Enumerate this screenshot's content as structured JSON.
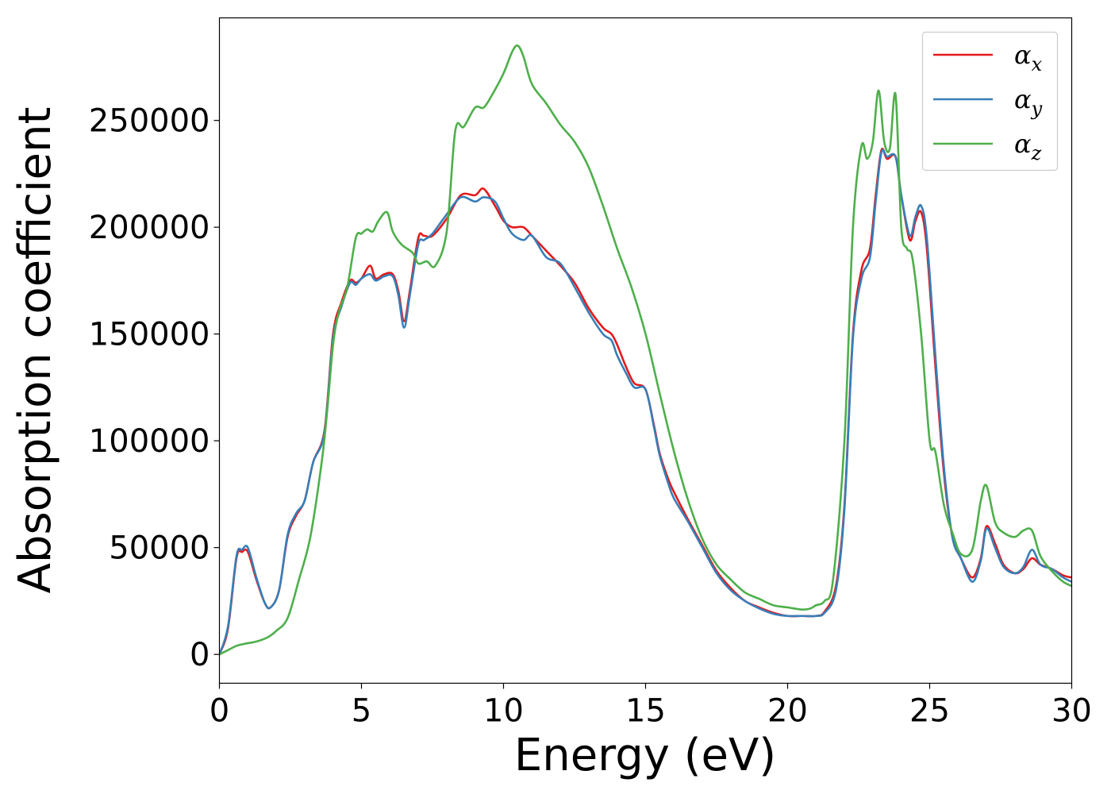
{
  "chart_data": {
    "type": "line",
    "xlabel": "Energy (eV)",
    "ylabel": "Absorption coefficient",
    "xlim": [
      0,
      30
    ],
    "ylim": [
      -13500,
      298000
    ],
    "xticks": [
      0,
      5,
      10,
      15,
      20,
      25,
      30
    ],
    "yticks": [
      0,
      50000,
      100000,
      150000,
      200000,
      250000
    ],
    "grid": false,
    "legend_position": "top-right",
    "series": [
      {
        "name": "αx",
        "legend_base": "α",
        "legend_sub": "x",
        "color": "#e41a1c",
        "x": [
          0,
          0.3,
          0.6,
          0.8,
          1.0,
          1.3,
          1.6,
          1.8,
          2.1,
          2.4,
          2.7,
          3.0,
          3.3,
          3.7,
          4.0,
          4.3,
          4.6,
          4.8,
          5.0,
          5.3,
          5.5,
          5.8,
          6.1,
          6.3,
          6.5,
          6.7,
          7.0,
          7.2,
          7.5,
          8.0,
          8.5,
          9.0,
          9.3,
          9.7,
          10.0,
          10.3,
          10.7,
          11.0,
          11.5,
          12.0,
          12.5,
          13.0,
          13.5,
          13.8,
          14.0,
          14.3,
          14.6,
          15.0,
          15.3,
          15.5,
          15.8,
          16.0,
          16.5,
          17.0,
          17.5,
          18.0,
          18.5,
          19.0,
          19.5,
          20.0,
          20.5,
          21.0,
          21.3,
          21.7,
          22.0,
          22.3,
          22.6,
          22.9,
          23.1,
          23.3,
          23.5,
          23.8,
          24.0,
          24.3,
          24.5,
          24.7,
          24.9,
          25.2,
          25.5,
          25.8,
          26.1,
          26.5,
          26.8,
          27.0,
          27.3,
          27.6,
          28.0,
          28.3,
          28.6,
          28.9,
          29.3,
          29.7,
          30.0
        ],
        "y": [
          0,
          12000,
          45000,
          48000,
          48000,
          35000,
          24000,
          22000,
          30000,
          55000,
          65000,
          72000,
          90000,
          105000,
          150000,
          165000,
          175000,
          174000,
          176000,
          182000,
          176000,
          178000,
          178000,
          170000,
          156000,
          170000,
          195000,
          196000,
          196000,
          204000,
          215000,
          215000,
          218000,
          210000,
          203000,
          200000,
          200000,
          196000,
          189000,
          182000,
          174000,
          162000,
          153000,
          150000,
          145000,
          135000,
          127000,
          124000,
          107000,
          94000,
          82000,
          76000,
          63000,
          51000,
          39000,
          31000,
          25000,
          22000,
          19500,
          18000,
          18000,
          18000,
          20000,
          32000,
          70000,
          150000,
          180000,
          190000,
          215000,
          236000,
          232000,
          233000,
          215000,
          194000,
          203000,
          207000,
          190000,
          135000,
          85000,
          55000,
          45000,
          36000,
          45000,
          60000,
          52000,
          42000,
          38000,
          40000,
          45000,
          42000,
          40000,
          37000,
          36000
        ]
      },
      {
        "name": "αy",
        "legend_base": "α",
        "legend_sub": "y",
        "color": "#377eb8",
        "x": [
          0,
          0.3,
          0.6,
          0.8,
          1.0,
          1.3,
          1.6,
          1.8,
          2.1,
          2.4,
          2.7,
          3.0,
          3.3,
          3.7,
          4.0,
          4.3,
          4.6,
          4.8,
          5.0,
          5.3,
          5.5,
          5.8,
          6.1,
          6.3,
          6.5,
          6.7,
          7.0,
          7.2,
          7.5,
          8.0,
          8.5,
          9.0,
          9.3,
          9.7,
          10.0,
          10.3,
          10.7,
          11.0,
          11.5,
          12.0,
          12.5,
          13.0,
          13.5,
          13.8,
          14.0,
          14.3,
          14.6,
          15.0,
          15.3,
          15.5,
          15.8,
          16.0,
          16.5,
          17.0,
          17.5,
          18.0,
          18.5,
          19.0,
          19.5,
          20.0,
          20.5,
          21.0,
          21.3,
          21.7,
          22.0,
          22.3,
          22.6,
          22.9,
          23.1,
          23.3,
          23.5,
          23.8,
          24.0,
          24.3,
          24.5,
          24.7,
          24.9,
          25.2,
          25.5,
          25.8,
          26.1,
          26.5,
          26.8,
          27.0,
          27.3,
          27.6,
          28.0,
          28.3,
          28.6,
          28.9,
          29.3,
          29.7,
          30.0
        ],
        "y": [
          0,
          13000,
          46000,
          49000,
          50000,
          36000,
          24000,
          22000,
          30000,
          56000,
          66000,
          72000,
          90000,
          104000,
          148000,
          163000,
          174000,
          173000,
          176000,
          178000,
          175000,
          177000,
          177000,
          168000,
          153000,
          168000,
          192000,
          194000,
          197000,
          206000,
          214000,
          212000,
          214000,
          212000,
          204000,
          197000,
          194000,
          196000,
          186000,
          183000,
          172000,
          160000,
          150000,
          147000,
          140000,
          132000,
          125000,
          124000,
          106000,
          93000,
          80000,
          73000,
          62000,
          50000,
          38000,
          30000,
          25000,
          21500,
          19000,
          18000,
          18000,
          18000,
          19500,
          30000,
          68000,
          148000,
          176000,
          186000,
          212000,
          235000,
          233000,
          233000,
          215000,
          196000,
          205000,
          210000,
          195000,
          140000,
          88000,
          55000,
          45000,
          34000,
          44000,
          59000,
          50000,
          41000,
          38000,
          41000,
          49000,
          42000,
          40000,
          36000,
          34000
        ]
      },
      {
        "name": "αz",
        "legend_base": "α",
        "legend_sub": "z",
        "color": "#4daf4a",
        "x": [
          0,
          0.3,
          0.6,
          0.9,
          1.3,
          1.7,
          2.0,
          2.4,
          2.8,
          3.2,
          3.6,
          3.8,
          4.0,
          4.2,
          4.5,
          4.8,
          5.0,
          5.2,
          5.4,
          5.6,
          5.9,
          6.1,
          6.4,
          6.8,
          7.0,
          7.3,
          7.6,
          8.0,
          8.3,
          8.6,
          9.0,
          9.3,
          9.6,
          10.0,
          10.3,
          10.5,
          10.7,
          11.0,
          11.5,
          12.0,
          12.5,
          13.0,
          13.5,
          14.0,
          14.5,
          15.0,
          15.5,
          16.0,
          16.5,
          17.0,
          17.5,
          18.0,
          18.5,
          19.0,
          19.5,
          20.0,
          20.5,
          20.8,
          21.0,
          21.3,
          21.6,
          22.0,
          22.3,
          22.6,
          22.8,
          23.0,
          23.2,
          23.4,
          23.6,
          23.8,
          24.0,
          24.2,
          24.4,
          24.7,
          25.0,
          25.2,
          25.5,
          25.8,
          26.1,
          26.5,
          26.8,
          27.0,
          27.3,
          27.6,
          28.0,
          28.3,
          28.6,
          28.9,
          29.3,
          29.7,
          30.0
        ],
        "y": [
          0,
          2000,
          4000,
          5000,
          6000,
          8000,
          11000,
          17000,
          35000,
          55000,
          90000,
          115000,
          145000,
          160000,
          172000,
          195000,
          197000,
          199000,
          198000,
          203000,
          207000,
          198000,
          192000,
          188000,
          183000,
          184000,
          182000,
          198000,
          245000,
          247000,
          256000,
          256000,
          262000,
          272000,
          282000,
          285000,
          280000,
          267000,
          258000,
          248000,
          240000,
          228000,
          210000,
          190000,
          172000,
          150000,
          122000,
          95000,
          72000,
          54000,
          42000,
          35000,
          29000,
          26000,
          23000,
          22000,
          21000,
          21500,
          23000,
          25000,
          35000,
          100000,
          200000,
          238000,
          232000,
          240000,
          264000,
          240000,
          237000,
          262000,
          200000,
          190000,
          185000,
          150000,
          100000,
          95000,
          70000,
          57000,
          47000,
          49000,
          72000,
          79000,
          62000,
          57000,
          55000,
          58000,
          58000,
          46000,
          39000,
          34000,
          32000
        ]
      }
    ]
  }
}
